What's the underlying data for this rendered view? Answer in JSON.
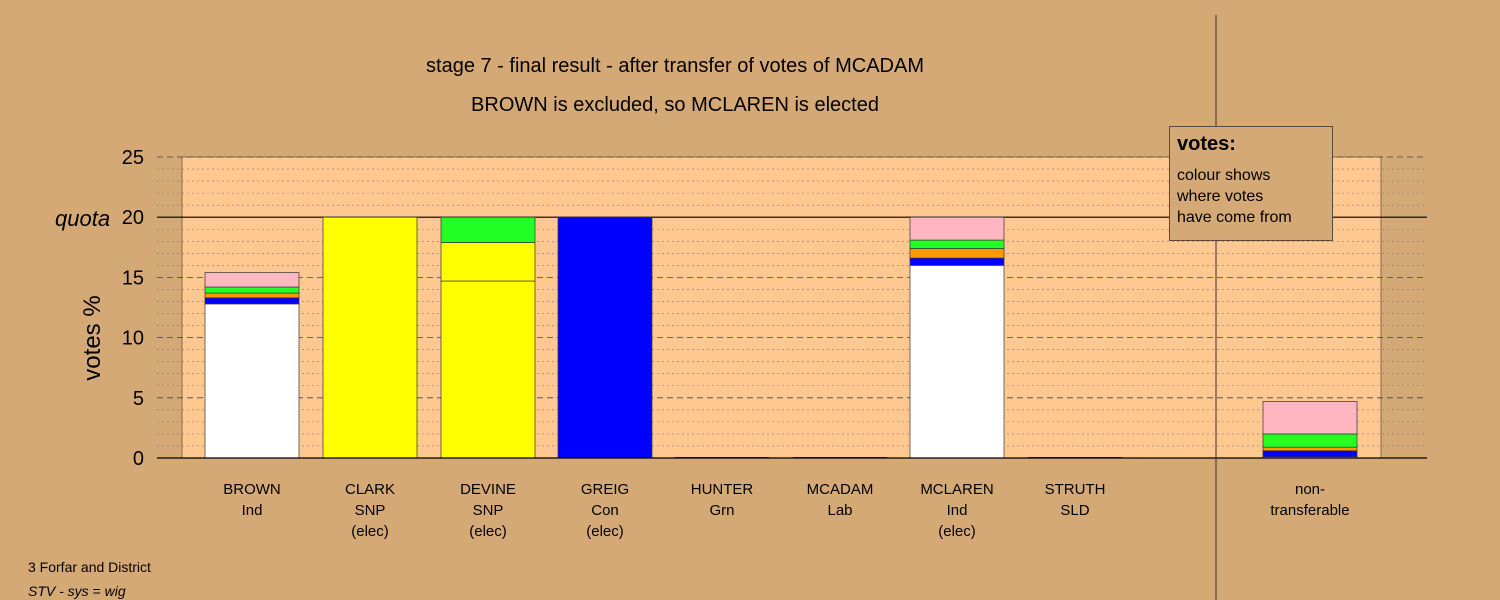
{
  "chart_data": {
    "type": "bar",
    "stacked": true,
    "title": "stage 7 - final result - after transfer of votes of MCADAM",
    "subtitle": "BROWN is excluded, so MCLAREN is elected",
    "ylabel": "votes %",
    "ylim": [
      0,
      25
    ],
    "yticks": [
      "0",
      "5",
      "10",
      "15",
      "20",
      "25"
    ],
    "quota": {
      "value": 20,
      "label": "quota"
    },
    "grid": true,
    "colors": {
      "plot_bg": "#ffc890",
      "page_bg": "#d5a975",
      "white": "#ffffff",
      "yellow": "#ffff00",
      "blue": "#0000ff",
      "orange": "#ff9900",
      "green": "#22ff22",
      "pink": "#ffb6c1"
    },
    "categories": [
      {
        "name": "BROWN",
        "party": "Ind",
        "status": "",
        "segments": [
          {
            "color": "white",
            "value": 12.8
          },
          {
            "color": "blue",
            "value": 0.5
          },
          {
            "color": "orange",
            "value": 0.4
          },
          {
            "color": "green",
            "value": 0.5
          },
          {
            "color": "pink",
            "value": 1.2
          }
        ]
      },
      {
        "name": "CLARK",
        "party": "SNP",
        "status": "(elec)",
        "segments": [
          {
            "color": "yellow",
            "value": 20
          }
        ]
      },
      {
        "name": "DEVINE",
        "party": "SNP",
        "status": "(elec)",
        "segments": [
          {
            "color": "yellow",
            "value": 14.7
          },
          {
            "color": "yellow",
            "value": 3.2
          },
          {
            "color": "green",
            "value": 2.1
          }
        ]
      },
      {
        "name": "GREIG",
        "party": "Con",
        "status": "(elec)",
        "segments": [
          {
            "color": "blue",
            "value": 20
          }
        ]
      },
      {
        "name": "HUNTER",
        "party": "Grn",
        "status": "",
        "segments": []
      },
      {
        "name": "MCADAM",
        "party": "Lab",
        "status": "",
        "segments": []
      },
      {
        "name": "MCLAREN",
        "party": "Ind",
        "status": "(elec)",
        "segments": [
          {
            "color": "white",
            "value": 16.0
          },
          {
            "color": "blue",
            "value": 0.6
          },
          {
            "color": "orange",
            "value": 0.8
          },
          {
            "color": "green",
            "value": 0.7
          },
          {
            "color": "pink",
            "value": 1.9
          }
        ]
      },
      {
        "name": "STRUTH",
        "party": "SLD",
        "status": "",
        "segments": []
      },
      {
        "name": "non-",
        "party": "transferable",
        "status": "",
        "segments": [
          {
            "color": "white",
            "value": 0.1
          },
          {
            "color": "blue",
            "value": 0.5
          },
          {
            "color": "orange",
            "value": 0.3
          },
          {
            "color": "green",
            "value": 1.1
          },
          {
            "color": "pink",
            "value": 2.7
          }
        ]
      }
    ]
  },
  "legend": {
    "title": "votes:",
    "lines": [
      "colour shows",
      "where votes",
      "have come from"
    ]
  },
  "footnotes": {
    "line1": "3 Forfar and District",
    "line2": "STV - sys = wig"
  }
}
